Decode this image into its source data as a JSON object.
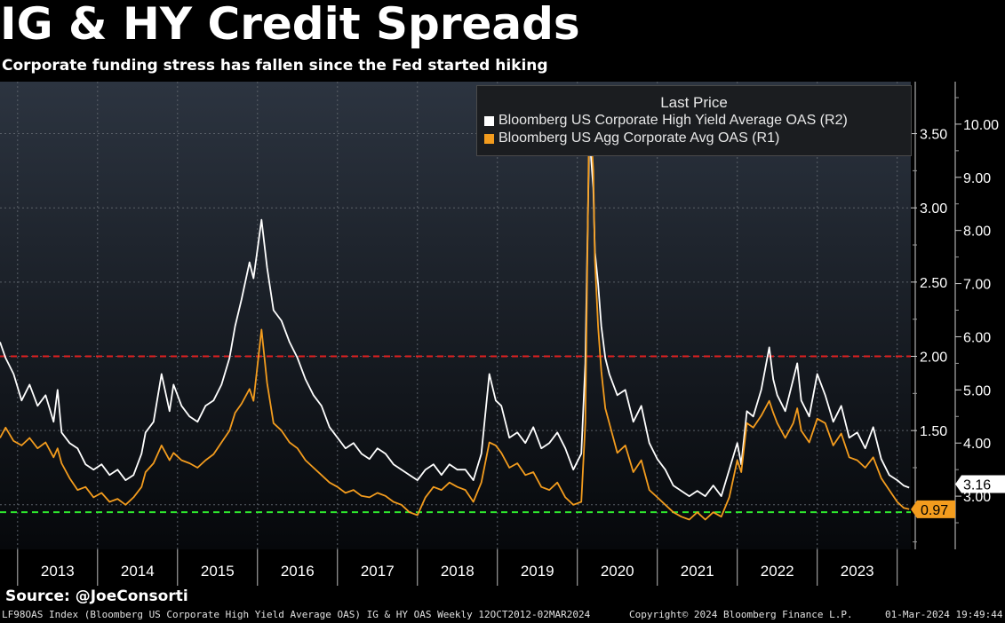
{
  "header": {
    "title": "IG & HY Credit Spreads",
    "subtitle": "Corporate funding stress has fallen since the Fed started hiking"
  },
  "source": "Source: @JoeConsorti",
  "footer": {
    "left": "LF98OAS Index (Bloomberg US Corporate High Yield Average OAS) IG & HY OAS  Weekly 12OCT2012-02MAR2024",
    "center": "Copyright© 2024 Bloomberg Finance L.P.",
    "right": "01-Mar-2024 19:49:44"
  },
  "legend": {
    "title": "Last Price",
    "items": [
      {
        "label": "Bloomberg US Corporate High Yield Average OAS  (R2)",
        "color": "#ffffff"
      },
      {
        "label": "Bloomberg US Agg Corporate Avg OAS  (R1)",
        "color": "#f39c1e"
      }
    ]
  },
  "chart_data": {
    "type": "line",
    "x_labels": [
      "2013",
      "2014",
      "2015",
      "2016",
      "2017",
      "2018",
      "2019",
      "2020",
      "2021",
      "2022",
      "2023"
    ],
    "xlim": [
      2012.78,
      2024.17
    ],
    "r1_axis": {
      "ticks": [
        "1.50",
        "2.00",
        "2.50",
        "3.00",
        "3.50"
      ],
      "min": 0.7,
      "max": 3.85
    },
    "r2_axis": {
      "ticks": [
        "3.00",
        "4.00",
        "5.00",
        "6.00",
        "7.00",
        "8.00",
        "9.00",
        "10.00"
      ],
      "min": 2.0,
      "max": 10.8
    },
    "reference_lines": [
      {
        "axis": "R1",
        "value": 2.0,
        "color": "#e02020"
      },
      {
        "axis": "R1",
        "value": 0.95,
        "color": "#2ee62e"
      }
    ],
    "last_values": {
      "ig": "0.97",
      "hy": "3.16"
    },
    "colors": {
      "ig": "#f39c1e",
      "hy": "#ffffff"
    },
    "series": [
      {
        "name": "Bloomberg US Corporate High Yield Average OAS  (R2)",
        "axis": "R2",
        "x": [
          2012.78,
          2012.85,
          2012.95,
          2013.05,
          2013.15,
          2013.25,
          2013.35,
          2013.45,
          2013.5,
          2013.55,
          2013.65,
          2013.75,
          2013.85,
          2013.95,
          2014.05,
          2014.15,
          2014.25,
          2014.35,
          2014.45,
          2014.55,
          2014.6,
          2014.7,
          2014.8,
          2014.9,
          2014.95,
          2015.05,
          2015.15,
          2015.25,
          2015.35,
          2015.45,
          2015.55,
          2015.65,
          2015.72,
          2015.8,
          2015.9,
          2015.95,
          2016.05,
          2016.12,
          2016.2,
          2016.3,
          2016.4,
          2016.5,
          2016.6,
          2016.7,
          2016.8,
          2016.9,
          2017.0,
          2017.1,
          2017.2,
          2017.3,
          2017.4,
          2017.5,
          2017.6,
          2017.7,
          2017.8,
          2017.9,
          2018.0,
          2018.1,
          2018.2,
          2018.3,
          2018.4,
          2018.5,
          2018.6,
          2018.7,
          2018.8,
          2018.9,
          2018.98,
          2019.05,
          2019.15,
          2019.25,
          2019.35,
          2019.45,
          2019.55,
          2019.65,
          2019.75,
          2019.85,
          2019.95,
          2020.05,
          2020.1,
          2020.15,
          2020.2,
          2020.22,
          2020.26,
          2020.3,
          2020.35,
          2020.4,
          2020.5,
          2020.6,
          2020.7,
          2020.8,
          2020.9,
          2021.0,
          2021.1,
          2021.2,
          2021.3,
          2021.4,
          2021.5,
          2021.6,
          2021.7,
          2021.8,
          2021.9,
          2022.0,
          2022.05,
          2022.12,
          2022.2,
          2022.3,
          2022.4,
          2022.45,
          2022.5,
          2022.6,
          2022.7,
          2022.75,
          2022.8,
          2022.9,
          2023.0,
          2023.1,
          2023.2,
          2023.3,
          2023.4,
          2023.5,
          2023.6,
          2023.7,
          2023.8,
          2023.9,
          2024.0,
          2024.08,
          2024.15
        ],
        "y": [
          5.9,
          5.6,
          5.3,
          4.8,
          5.1,
          4.7,
          4.9,
          4.4,
          5.0,
          4.2,
          4.0,
          3.9,
          3.6,
          3.5,
          3.6,
          3.4,
          3.5,
          3.3,
          3.4,
          3.8,
          4.2,
          4.4,
          5.3,
          4.6,
          5.1,
          4.7,
          4.5,
          4.4,
          4.7,
          4.8,
          5.1,
          5.6,
          6.2,
          6.7,
          7.4,
          7.1,
          8.2,
          7.3,
          6.5,
          6.3,
          5.9,
          5.6,
          5.2,
          4.9,
          4.7,
          4.3,
          4.1,
          3.9,
          4.0,
          3.8,
          3.7,
          3.9,
          3.8,
          3.6,
          3.5,
          3.4,
          3.3,
          3.5,
          3.6,
          3.4,
          3.6,
          3.5,
          3.5,
          3.3,
          3.8,
          5.3,
          4.8,
          4.7,
          4.1,
          4.2,
          4.0,
          4.3,
          3.9,
          4.0,
          4.2,
          3.9,
          3.5,
          3.8,
          5.5,
          9.8,
          8.8,
          7.6,
          7.0,
          6.2,
          5.6,
          5.3,
          4.9,
          5.0,
          4.4,
          4.7,
          4.0,
          3.7,
          3.5,
          3.2,
          3.1,
          3.0,
          3.1,
          3.0,
          3.2,
          3.0,
          3.5,
          4.0,
          3.6,
          4.6,
          4.5,
          5.0,
          5.8,
          5.2,
          4.9,
          4.6,
          5.2,
          5.5,
          4.8,
          4.5,
          5.3,
          4.9,
          4.4,
          4.7,
          4.1,
          4.2,
          3.9,
          4.3,
          3.7,
          3.4,
          3.3,
          3.2,
          3.16
        ]
      },
      {
        "name": "Bloomberg US Agg Corporate Avg OAS  (R1)",
        "axis": "R1",
        "x": [
          2012.78,
          2012.85,
          2012.95,
          2013.05,
          2013.15,
          2013.25,
          2013.35,
          2013.45,
          2013.5,
          2013.55,
          2013.65,
          2013.75,
          2013.85,
          2013.95,
          2014.05,
          2014.15,
          2014.25,
          2014.35,
          2014.45,
          2014.55,
          2014.6,
          2014.7,
          2014.8,
          2014.9,
          2014.95,
          2015.05,
          2015.15,
          2015.25,
          2015.35,
          2015.45,
          2015.55,
          2015.65,
          2015.72,
          2015.8,
          2015.9,
          2015.95,
          2016.05,
          2016.12,
          2016.2,
          2016.3,
          2016.4,
          2016.5,
          2016.6,
          2016.7,
          2016.8,
          2016.9,
          2017.0,
          2017.1,
          2017.2,
          2017.3,
          2017.4,
          2017.5,
          2017.6,
          2017.7,
          2017.8,
          2017.9,
          2018.0,
          2018.1,
          2018.2,
          2018.3,
          2018.4,
          2018.5,
          2018.6,
          2018.7,
          2018.8,
          2018.9,
          2018.98,
          2019.05,
          2019.15,
          2019.25,
          2019.35,
          2019.45,
          2019.55,
          2019.65,
          2019.75,
          2019.85,
          2019.95,
          2020.05,
          2020.1,
          2020.15,
          2020.2,
          2020.22,
          2020.26,
          2020.3,
          2020.35,
          2020.4,
          2020.5,
          2020.6,
          2020.7,
          2020.8,
          2020.9,
          2021.0,
          2021.1,
          2021.2,
          2021.3,
          2021.4,
          2021.5,
          2021.6,
          2021.7,
          2021.8,
          2021.9,
          2022.0,
          2022.05,
          2022.12,
          2022.2,
          2022.3,
          2022.4,
          2022.45,
          2022.5,
          2022.6,
          2022.7,
          2022.75,
          2022.8,
          2022.9,
          2023.0,
          2023.1,
          2023.2,
          2023.3,
          2023.4,
          2023.5,
          2023.6,
          2023.7,
          2023.8,
          2023.9,
          2024.0,
          2024.08,
          2024.15
        ],
        "y": [
          1.45,
          1.52,
          1.43,
          1.4,
          1.45,
          1.38,
          1.42,
          1.32,
          1.38,
          1.28,
          1.18,
          1.1,
          1.12,
          1.05,
          1.08,
          1.02,
          1.04,
          1.0,
          1.05,
          1.12,
          1.22,
          1.28,
          1.4,
          1.3,
          1.35,
          1.3,
          1.28,
          1.25,
          1.3,
          1.34,
          1.42,
          1.5,
          1.62,
          1.68,
          1.78,
          1.7,
          2.18,
          1.82,
          1.55,
          1.5,
          1.42,
          1.38,
          1.3,
          1.25,
          1.2,
          1.15,
          1.12,
          1.08,
          1.1,
          1.06,
          1.05,
          1.08,
          1.06,
          1.02,
          1.0,
          0.95,
          0.93,
          1.05,
          1.12,
          1.1,
          1.15,
          1.12,
          1.1,
          1.02,
          1.15,
          1.42,
          1.4,
          1.35,
          1.25,
          1.28,
          1.2,
          1.22,
          1.12,
          1.1,
          1.15,
          1.05,
          1.0,
          1.02,
          1.55,
          3.7,
          3.25,
          2.65,
          2.2,
          1.9,
          1.65,
          1.55,
          1.35,
          1.4,
          1.22,
          1.3,
          1.1,
          1.05,
          1.0,
          0.95,
          0.92,
          0.9,
          0.95,
          0.9,
          0.95,
          0.92,
          1.05,
          1.3,
          1.22,
          1.55,
          1.52,
          1.6,
          1.7,
          1.62,
          1.55,
          1.45,
          1.55,
          1.65,
          1.5,
          1.42,
          1.58,
          1.55,
          1.4,
          1.48,
          1.32,
          1.3,
          1.25,
          1.32,
          1.18,
          1.1,
          1.02,
          0.98,
          0.97
        ]
      }
    ]
  }
}
